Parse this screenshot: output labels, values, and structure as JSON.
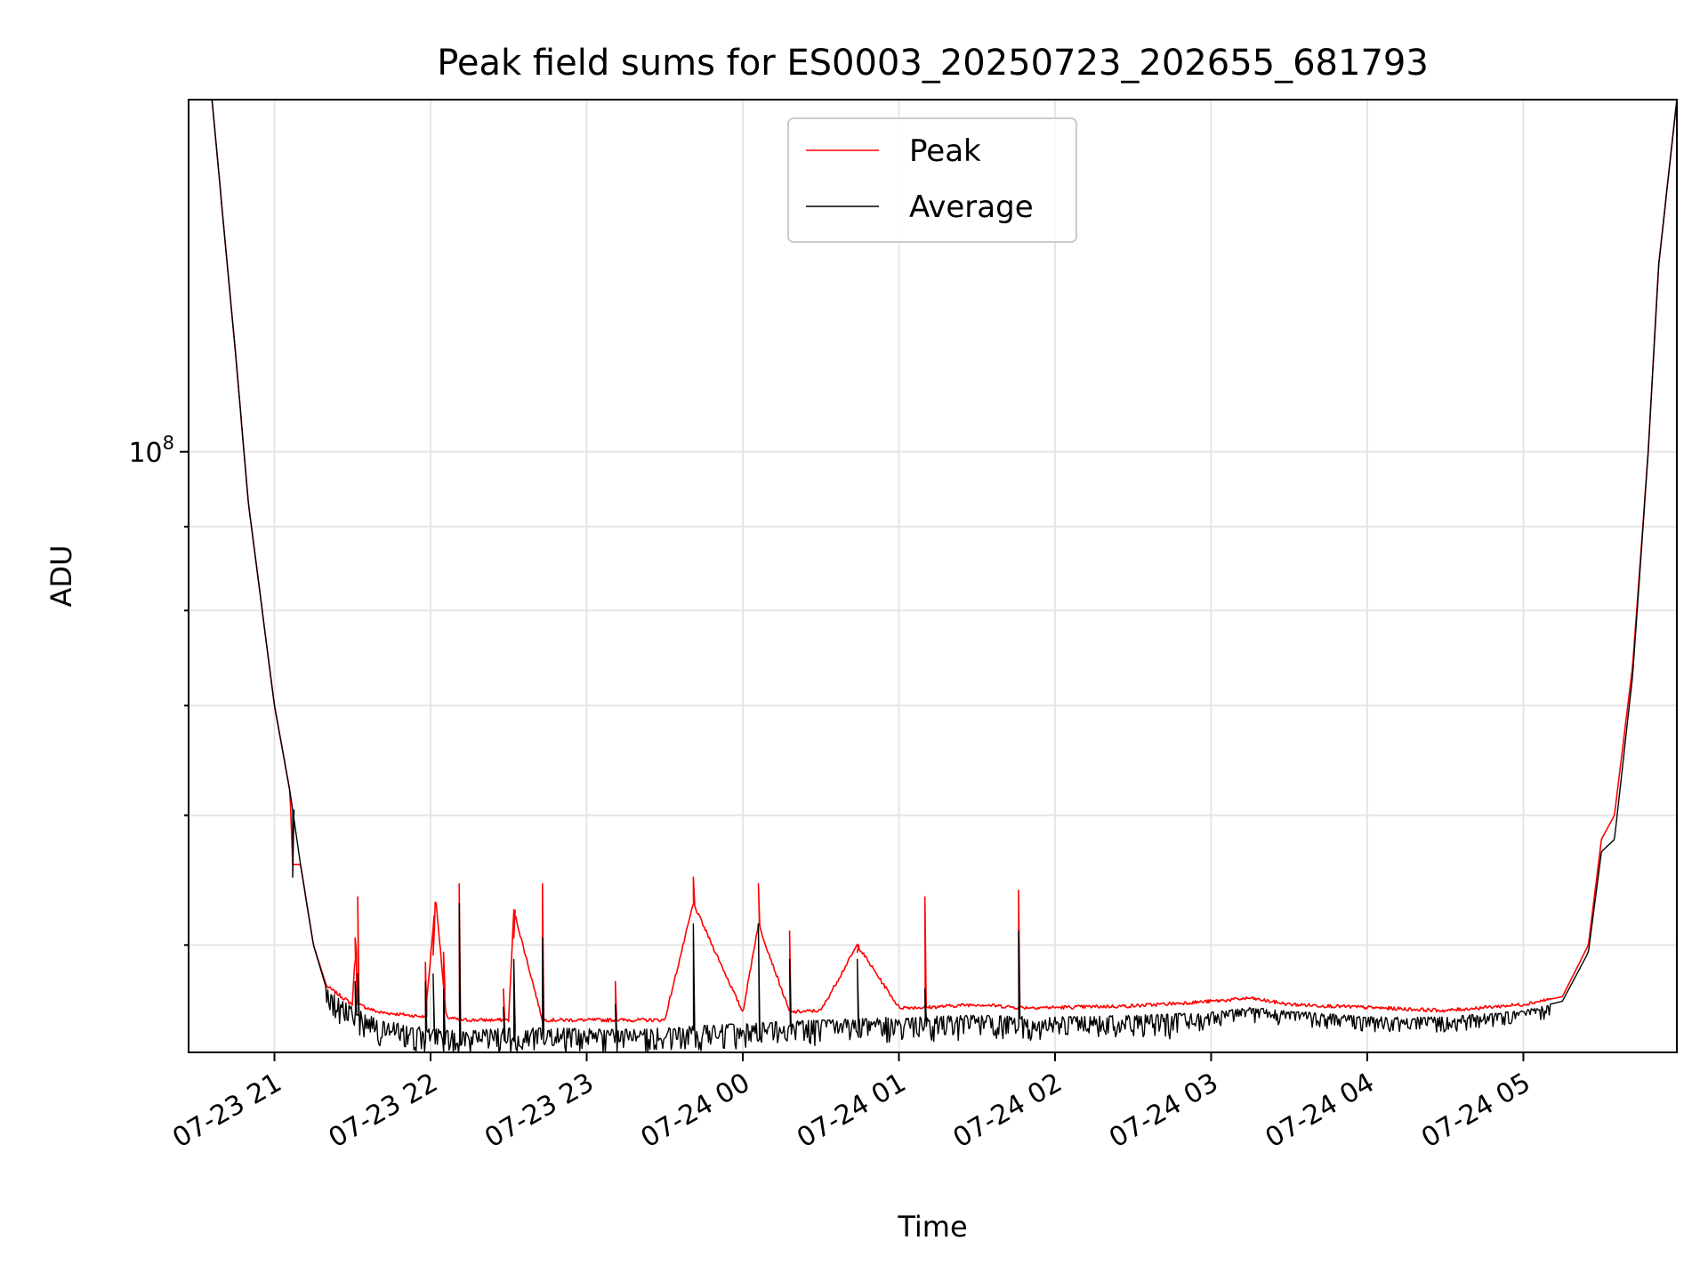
{
  "chart_data": {
    "type": "line",
    "title": "Peak field sums for ES0003_20250723_202655_681793",
    "xlabel": "Time",
    "ylabel": "ADU",
    "y_scale": "log",
    "ylim": [
      43000000.0,
      164000000.0
    ],
    "y_major_tick": {
      "value": 100000000.0,
      "label_base": "10",
      "label_exp": "8"
    },
    "x_tick_labels": [
      "07-23 21",
      "07-23 22",
      "07-23 23",
      "07-24 00",
      "07-24 01",
      "07-24 02",
      "07-24 03",
      "07-24 04",
      "07-24 05"
    ],
    "x_ticks": [
      "2025-07-23 21:00",
      "2025-07-23 22:00",
      "2025-07-23 23:00",
      "2025-07-24 00:00",
      "2025-07-24 01:00",
      "2025-07-24 02:00",
      "2025-07-24 03:00",
      "2025-07-24 04:00",
      "2025-07-24 05:00"
    ],
    "xlim": [
      "2025-07-23 20:27",
      "2025-07-24 05:59"
    ],
    "grid": true,
    "legend_position": "upper center",
    "series": [
      {
        "name": "Peak",
        "color": "#ff0000",
        "x": [
          "2025-07-23 20:27",
          "2025-07-23 20:36",
          "2025-07-23 20:40",
          "2025-07-23 20:45",
          "2025-07-23 20:50",
          "2025-07-23 21:00",
          "2025-07-23 21:06",
          "2025-07-23 21:07",
          "2025-07-23 21:10",
          "2025-07-23 21:15",
          "2025-07-23 21:20",
          "2025-07-23 21:30",
          "2025-07-23 21:31",
          "2025-07-23 21:32",
          "2025-07-23 21:40",
          "2025-07-23 21:58",
          "2025-07-23 22:02",
          "2025-07-23 22:06",
          "2025-07-23 22:11",
          "2025-07-23 22:30",
          "2025-07-23 22:32",
          "2025-07-23 22:43",
          "2025-07-23 22:50",
          "2025-07-23 23:11",
          "2025-07-23 23:30",
          "2025-07-23 23:41",
          "2025-07-24 00:00",
          "2025-07-24 00:06",
          "2025-07-24 00:18",
          "2025-07-24 00:30",
          "2025-07-24 00:44",
          "2025-07-24 01:00",
          "2025-07-24 01:10",
          "2025-07-24 01:30",
          "2025-07-24 01:46",
          "2025-07-24 02:00",
          "2025-07-24 02:30",
          "2025-07-24 03:00",
          "2025-07-24 03:15",
          "2025-07-24 03:30",
          "2025-07-24 04:00",
          "2025-07-24 04:30",
          "2025-07-24 05:00",
          "2025-07-24 05:15",
          "2025-07-24 05:25",
          "2025-07-24 05:30",
          "2025-07-24 05:35",
          "2025-07-24 05:42",
          "2025-07-24 05:48",
          "2025-07-24 05:52",
          "2025-07-24 05:59"
        ],
        "y": [
          164000000.0,
          164000000.0,
          140000000.0,
          115000000.0,
          93000000.0,
          70000000.0,
          62000000.0,
          56000000.0,
          56000000.0,
          50000000.0,
          47200000.0,
          46000000.0,
          49500000.0,
          46000000.0,
          45500000.0,
          45200000.0,
          53500000.0,
          45200000.0,
          45000000.0,
          45000000.0,
          52500000.0,
          45000000.0,
          45000000.0,
          45000000.0,
          45000000.0,
          53000000.0,
          45500000.0,
          51500000.0,
          45500000.0,
          45600000.0,
          50000000.0,
          45800000.0,
          45800000.0,
          46000000.0,
          45800000.0,
          45800000.0,
          45900000.0,
          46200000.0,
          46400000.0,
          46000000.0,
          45800000.0,
          45600000.0,
          46000000.0,
          46500000.0,
          50000000.0,
          58000000.0,
          60000000.0,
          74000000.0,
          100000000.0,
          130000000.0,
          164000000.0
        ]
      },
      {
        "name": "Average",
        "color": "#000000",
        "x": [
          "2025-07-23 20:27",
          "2025-07-23 20:36",
          "2025-07-23 20:40",
          "2025-07-23 20:45",
          "2025-07-23 20:50",
          "2025-07-23 21:00",
          "2025-07-23 21:06",
          "2025-07-23 21:10",
          "2025-07-23 21:15",
          "2025-07-23 21:20",
          "2025-07-23 21:30",
          "2025-07-23 21:40",
          "2025-07-23 21:58",
          "2025-07-23 22:11",
          "2025-07-23 22:30",
          "2025-07-23 22:50",
          "2025-07-23 23:11",
          "2025-07-23 23:30",
          "2025-07-24 00:00",
          "2025-07-24 00:30",
          "2025-07-24 01:00",
          "2025-07-24 01:30",
          "2025-07-24 02:00",
          "2025-07-24 02:30",
          "2025-07-24 03:00",
          "2025-07-24 03:15",
          "2025-07-24 03:30",
          "2025-07-24 04:00",
          "2025-07-24 04:30",
          "2025-07-24 05:00",
          "2025-07-24 05:15",
          "2025-07-24 05:25",
          "2025-07-24 05:30",
          "2025-07-24 05:35",
          "2025-07-24 05:42",
          "2025-07-24 05:48",
          "2025-07-24 05:52",
          "2025-07-24 05:59"
        ],
        "y": [
          164000000.0,
          164000000.0,
          140000000.0,
          115000000.0,
          93000000.0,
          70000000.0,
          62000000.0,
          56000000.0,
          50000000.0,
          47000000.0,
          45800000.0,
          45000000.0,
          44500000.0,
          44300000.0,
          44500000.0,
          44500000.0,
          44400000.0,
          44500000.0,
          44800000.0,
          45000000.0,
          45200000.0,
          45300000.0,
          45200000.0,
          45300000.0,
          45500000.0,
          45800000.0,
          45600000.0,
          45200000.0,
          45200000.0,
          45600000.0,
          46200000.0,
          49500000.0,
          57000000.0,
          58000000.0,
          73000000.0,
          100000000.0,
          130000000.0,
          164000000.0
        ]
      }
    ],
    "spikes": [
      {
        "x": "2025-07-23 21:07",
        "peak": 56000000.0,
        "average": 55000000.0
      },
      {
        "x": "2025-07-23 21:31",
        "peak": 50500000.0,
        "average": 47500000.0
      },
      {
        "x": "2025-07-23 21:32",
        "peak": 53500000.0,
        "average": 48000000.0
      },
      {
        "x": "2025-07-23 21:58",
        "peak": 48800000.0,
        "average": 47500000.0
      },
      {
        "x": "2025-07-23 22:01",
        "peak": 49300000.0,
        "average": 48000000.0
      },
      {
        "x": "2025-07-23 22:05",
        "peak": 49500000.0,
        "average": 47000000.0
      },
      {
        "x": "2025-07-23 22:11",
        "peak": 54500000.0,
        "average": 53000000.0
      },
      {
        "x": "2025-07-23 22:28",
        "peak": 47000000.0,
        "average": 45800000.0
      },
      {
        "x": "2025-07-23 22:32",
        "peak": 50500000.0,
        "average": 49000000.0
      },
      {
        "x": "2025-07-23 22:43",
        "peak": 54500000.0,
        "average": 50500000.0
      },
      {
        "x": "2025-07-23 23:11",
        "peak": 47500000.0,
        "average": 46000000.0
      },
      {
        "x": "2025-07-23 23:41",
        "peak": 55000000.0,
        "average": 51500000.0
      },
      {
        "x": "2025-07-24 00:06",
        "peak": 54500000.0,
        "average": 51500000.0
      },
      {
        "x": "2025-07-24 00:18",
        "peak": 51000000.0,
        "average": 49000000.0
      },
      {
        "x": "2025-07-24 00:44",
        "peak": 49500000.0,
        "average": 49000000.0
      },
      {
        "x": "2025-07-24 01:10",
        "peak": 53500000.0,
        "average": 47000000.0
      },
      {
        "x": "2025-07-24 01:46",
        "peak": 54000000.0,
        "average": 51000000.0
      }
    ]
  }
}
